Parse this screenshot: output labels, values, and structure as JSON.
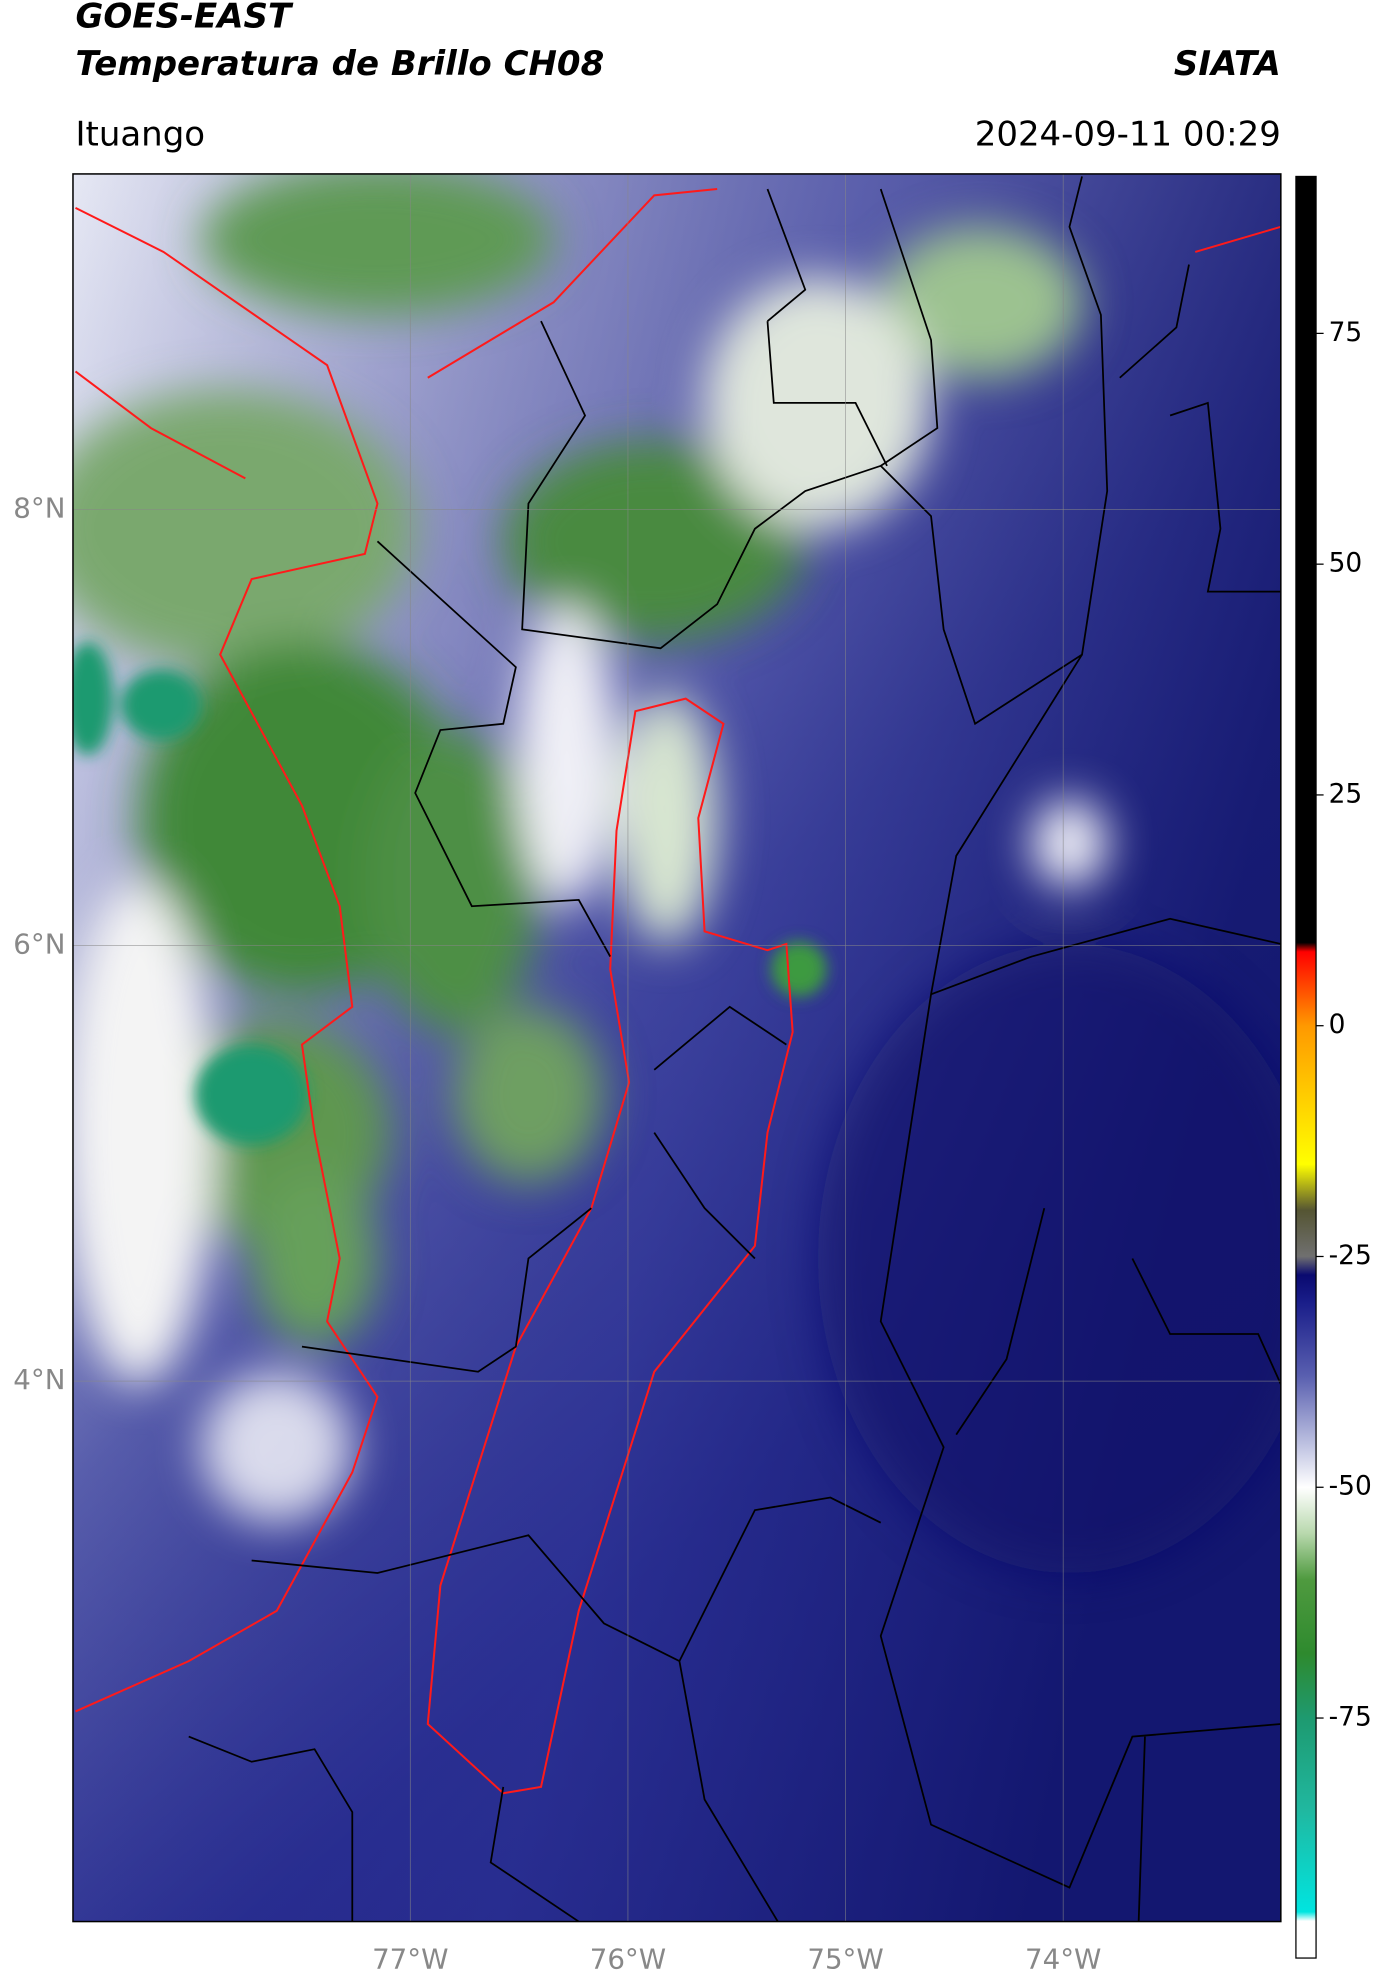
{
  "header": {
    "title": "GOES-EAST",
    "subtitle": "Temperatura de Brillo CH08",
    "agency": "SIATA",
    "location": "Ituango",
    "timestamp": "2024-09-11 00:29"
  },
  "map": {
    "xlim": [
      -78.55,
      -73.0
    ],
    "ylim": [
      1.52,
      9.54
    ],
    "xticks": [
      {
        "value": -77,
        "label": "77°W"
      },
      {
        "value": -76,
        "label": "76°W"
      },
      {
        "value": -75,
        "label": "75°W"
      },
      {
        "value": -74,
        "label": "74°W"
      }
    ],
    "yticks": [
      {
        "value": 8,
        "label": "8°N"
      },
      {
        "value": 6,
        "label": "6°N"
      },
      {
        "value": 4,
        "label": "4°N"
      }
    ],
    "grid": true
  },
  "colorbar": {
    "lim": [
      -101,
      92
    ],
    "ticks": [
      75,
      50,
      25,
      0,
      -25,
      -50,
      -75
    ],
    "stops": [
      {
        "value": -101,
        "color": "#ffffff"
      },
      {
        "value": -97,
        "color": "#ffffff"
      },
      {
        "value": -96,
        "color": "#00e5e0"
      },
      {
        "value": -85,
        "color": "#20b8a0"
      },
      {
        "value": -75,
        "color": "#1e9a70"
      },
      {
        "value": -68,
        "color": "#2e8a2e"
      },
      {
        "value": -60,
        "color": "#4f9a3f"
      },
      {
        "value": -55,
        "color": "#b8d8ad"
      },
      {
        "value": -50,
        "color": "#ffffff"
      },
      {
        "value": -45,
        "color": "#b9bddf"
      },
      {
        "value": -38,
        "color": "#5a60b0"
      },
      {
        "value": -30,
        "color": "#1a1e8a"
      },
      {
        "value": -27,
        "color": "#0a0a70"
      },
      {
        "value": -25,
        "color": "#707070"
      },
      {
        "value": -20,
        "color": "#555533"
      },
      {
        "value": -15,
        "color": "#ffff00"
      },
      {
        "value": 0,
        "color": "#ff9900"
      },
      {
        "value": 8,
        "color": "#ff0000"
      },
      {
        "value": 9,
        "color": "#000000"
      },
      {
        "value": 92,
        "color": "#000000"
      }
    ]
  }
}
